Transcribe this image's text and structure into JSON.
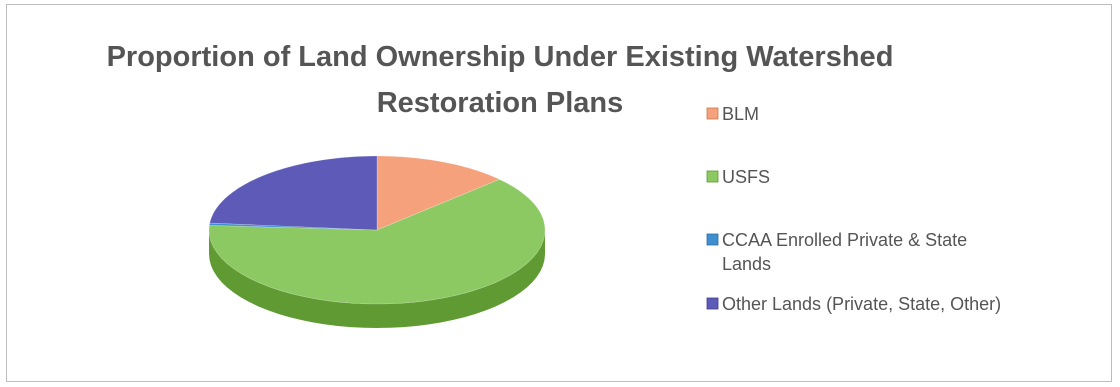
{
  "chart_data": {
    "type": "pie",
    "title": "Proportion of Land Ownership Under Existing Watershed Restoration Plans",
    "title_lines": [
      "Proportion of Land Ownership Under Existing Watershed",
      "Restoration Plans"
    ],
    "categories": [
      "BLM",
      "USFS",
      "CCAA Enrolled Private & State Lands",
      "Other Lands (Private, State, Other)"
    ],
    "legend_lines": [
      [
        "BLM"
      ],
      [
        "USFS"
      ],
      [
        "CCAA Enrolled Private & State",
        "Lands"
      ],
      [
        "Other Lands (Private, State, Other)"
      ]
    ],
    "values": [
      13,
      63,
      0.5,
      23.5
    ],
    "colors": [
      "#f4a17c",
      "#8dc963",
      "#3f8fd0",
      "#5e5bb8"
    ],
    "side_colors": [
      "#c97a52",
      "#5f9a33",
      "#2b6da6",
      "#403d8f"
    ],
    "legend_placement": "right",
    "style": "3d"
  }
}
